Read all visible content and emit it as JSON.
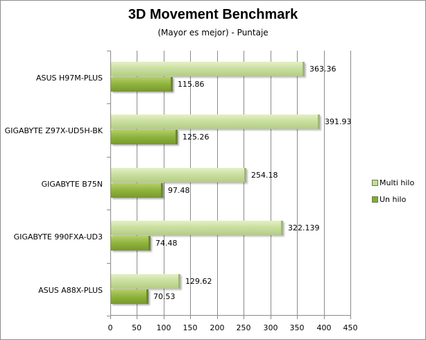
{
  "chart_data": {
    "type": "bar",
    "orientation": "horizontal",
    "title": "3D Movement Benchmark",
    "subtitle": "(Mayor es mejor) - Puntaje",
    "xlabel": "",
    "ylabel": "",
    "xlim": [
      0,
      450
    ],
    "x_ticks": [
      "0",
      "50",
      "100",
      "150",
      "200",
      "250",
      "300",
      "350",
      "400",
      "450"
    ],
    "grid": true,
    "legend_position": "right",
    "categories": [
      "ASUS H97M-PLUS",
      "GIGABYTE Z97X-UD5H-BK",
      "GIGABYTE B75N",
      "GIGABYTE 990FXA-UD3",
      "ASUS A88X-PLUS"
    ],
    "series": [
      {
        "name": "Multi hilo",
        "color": "#c6dc9a",
        "values": [
          363.36,
          391.93,
          254.18,
          322.139,
          129.62
        ],
        "labels": [
          "363.36",
          "391.93",
          "254.18",
          "322.139",
          "129.62"
        ]
      },
      {
        "name": "Un hilo",
        "color": "#86aa36",
        "values": [
          115.86,
          125.26,
          97.48,
          74.48,
          70.53
        ],
        "labels": [
          "115.86",
          "125.26",
          "97.48",
          "74.48",
          "70.53"
        ]
      }
    ]
  }
}
